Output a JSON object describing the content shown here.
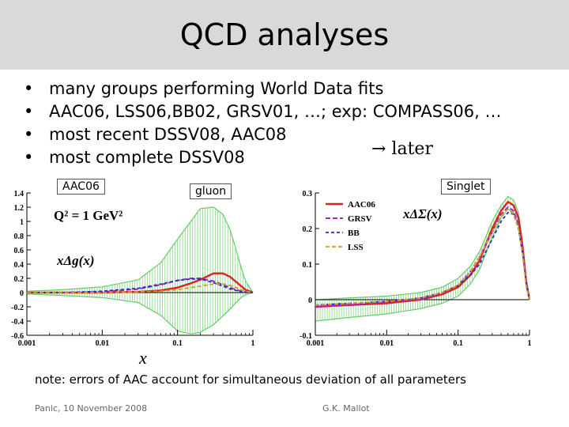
{
  "title": "QCD analyses",
  "bullets": [
    {
      "text": "many groups performing  World Data fits"
    },
    {
      "text": "AAC06, LSS06,BB02, GRSV01, …; exp: COMPASS06, …"
    },
    {
      "text": "most recent     DSSV08, AAC08"
    },
    {
      "text": "most complete DSSV08"
    }
  ],
  "later_text": "→ later",
  "tags": {
    "left": "AAC06",
    "middle": "gluon",
    "right": "Singlet"
  },
  "left_labels": {
    "q2": "Q² = 1 GeV²",
    "func": "xΔg(x)"
  },
  "right_labels": {
    "func": "xΔΣ(x)"
  },
  "x_axis_label": "x",
  "note": "note: errors of AAC account for simultaneous deviation of all parameters",
  "footer": {
    "left": "Panic, 10 November 2008",
    "right": "G.K. Mallot"
  },
  "colors": {
    "aac": "#dd2222",
    "grsv": "#aa22cc",
    "bb": "#2233bb",
    "lss": "#c8a020",
    "band": "#66cc66",
    "title_bg": "#d9d9d9"
  },
  "chart_data": [
    {
      "type": "line",
      "title": "",
      "xscale": "log",
      "xlim": [
        0.001,
        1
      ],
      "ylim": [
        -0.6,
        1.4
      ],
      "xticks": [
        "0.001",
        "0.01",
        "0.1",
        "1"
      ],
      "yticks": [
        "1.4",
        "1.2",
        "1",
        "0.8",
        "0.6",
        "0.4",
        "0.2",
        "0",
        "-0.2",
        "-0.4",
        "-0.6"
      ],
      "x": [
        0.001,
        0.003,
        0.01,
        0.03,
        0.06,
        0.1,
        0.15,
        0.2,
        0.3,
        0.4,
        0.5,
        0.6,
        0.7,
        0.8,
        1.0
      ],
      "series": [
        {
          "name": "AAC06",
          "values": [
            0.0,
            0.0,
            0.0,
            0.01,
            0.03,
            0.07,
            0.13,
            0.18,
            0.27,
            0.27,
            0.22,
            0.15,
            0.09,
            0.04,
            0.0
          ]
        },
        {
          "name": "GRSV",
          "values": [
            0.0,
            0.0,
            0.01,
            0.05,
            0.11,
            0.17,
            0.2,
            0.2,
            0.16,
            0.11,
            0.07,
            0.04,
            0.02,
            0.01,
            0.0
          ]
        },
        {
          "name": "BB",
          "values": [
            0.0,
            0.0,
            0.02,
            0.06,
            0.12,
            0.17,
            0.19,
            0.19,
            0.14,
            0.09,
            0.05,
            0.03,
            0.01,
            0.0,
            0.0
          ]
        },
        {
          "name": "LSS",
          "values": [
            0.0,
            0.0,
            0.0,
            0.01,
            0.02,
            0.04,
            0.07,
            0.09,
            0.12,
            0.12,
            0.1,
            0.07,
            0.04,
            0.02,
            0.0
          ]
        }
      ],
      "band": {
        "name": "AAC06 uncertainty",
        "upper": [
          0.02,
          0.04,
          0.08,
          0.18,
          0.42,
          0.75,
          1.0,
          1.18,
          1.2,
          1.1,
          0.88,
          0.6,
          0.35,
          0.16,
          0.0
        ],
        "lower": [
          -0.02,
          -0.04,
          -0.07,
          -0.14,
          -0.32,
          -0.54,
          -0.58,
          -0.56,
          -0.45,
          -0.33,
          -0.23,
          -0.14,
          -0.07,
          -0.03,
          0.0
        ]
      }
    },
    {
      "type": "line",
      "title": "",
      "xscale": "log",
      "xlim": [
        0.001,
        1
      ],
      "ylim": [
        -0.1,
        0.3
      ],
      "xticks": [
        "0.001",
        "0.01",
        "0.1",
        "1"
      ],
      "yticks": [
        "0.3",
        "0.2",
        "0.1",
        "0",
        "-0.1"
      ],
      "legend": "top-left",
      "x": [
        0.001,
        0.003,
        0.01,
        0.03,
        0.06,
        0.1,
        0.15,
        0.2,
        0.3,
        0.4,
        0.5,
        0.6,
        0.7,
        0.8,
        0.9,
        1.0
      ],
      "series": [
        {
          "name": "AAC06",
          "values": [
            -0.02,
            -0.015,
            -0.01,
            0.0,
            0.015,
            0.035,
            0.07,
            0.11,
            0.2,
            0.25,
            0.275,
            0.265,
            0.23,
            0.15,
            0.05,
            0.0
          ]
        },
        {
          "name": "GRSV",
          "values": [
            -0.02,
            -0.015,
            -0.005,
            0.0,
            0.02,
            0.04,
            0.08,
            0.12,
            0.19,
            0.24,
            0.26,
            0.25,
            0.21,
            0.14,
            0.05,
            0.0
          ]
        },
        {
          "name": "BB",
          "values": [
            -0.015,
            -0.01,
            -0.005,
            0.005,
            0.02,
            0.04,
            0.07,
            0.1,
            0.17,
            0.22,
            0.245,
            0.24,
            0.2,
            0.13,
            0.05,
            0.0
          ]
        },
        {
          "name": "LSS",
          "values": [
            -0.015,
            -0.01,
            -0.005,
            0.005,
            0.02,
            0.04,
            0.08,
            0.12,
            0.19,
            0.235,
            0.255,
            0.24,
            0.2,
            0.13,
            0.04,
            0.0
          ]
        }
      ],
      "band": {
        "name": "AAC06 uncertainty",
        "upper": [
          0.0,
          0.005,
          0.01,
          0.02,
          0.035,
          0.06,
          0.095,
          0.135,
          0.22,
          0.265,
          0.29,
          0.28,
          0.245,
          0.16,
          0.06,
          0.0
        ],
        "lower": [
          -0.06,
          -0.05,
          -0.04,
          -0.025,
          -0.01,
          0.01,
          0.045,
          0.085,
          0.175,
          0.23,
          0.255,
          0.245,
          0.21,
          0.13,
          0.035,
          0.0
        ]
      }
    }
  ]
}
